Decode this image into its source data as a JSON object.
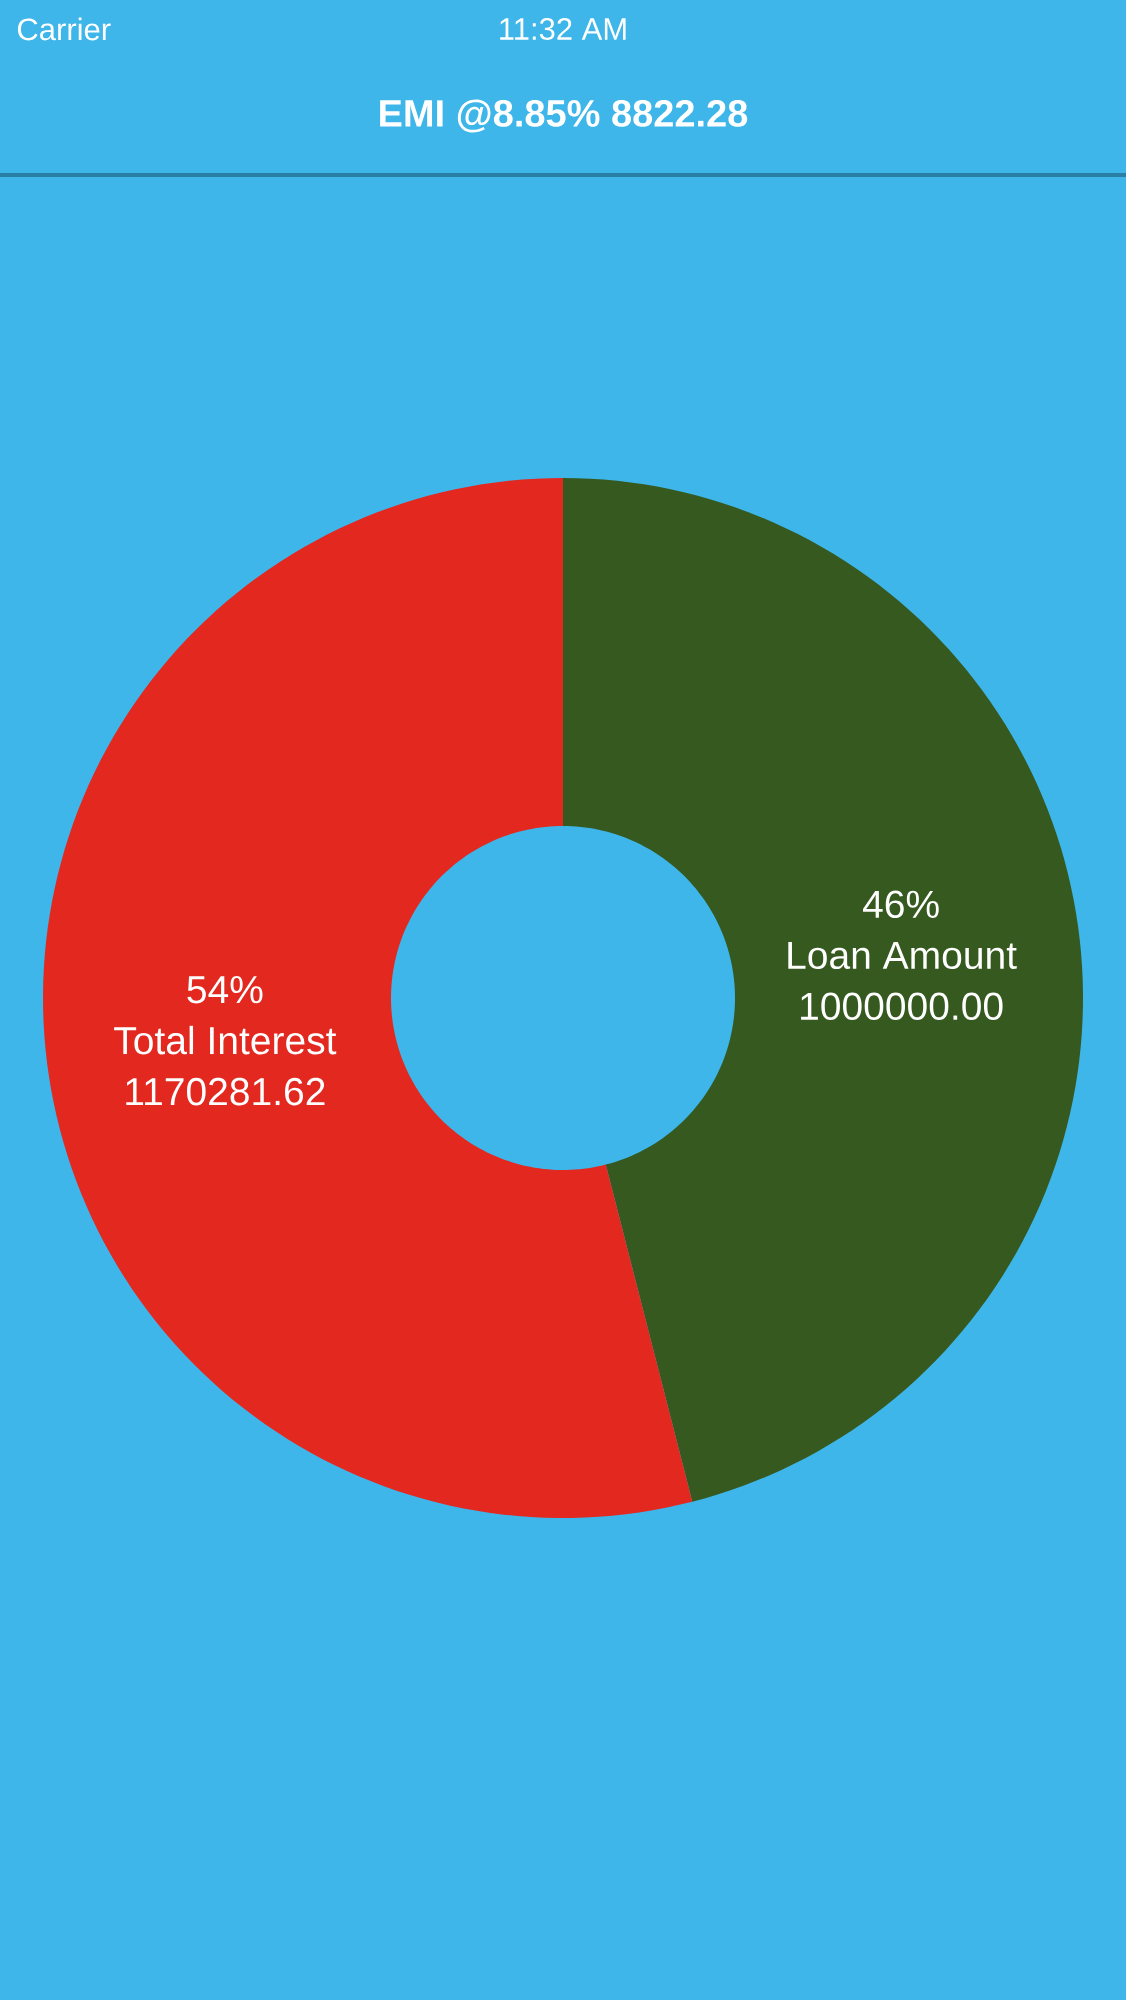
{
  "chart_data": {
    "type": "donut",
    "title": "EMI @8.85% 8822.28",
    "categories": [
      "Loan Amount",
      "Total Interest"
    ],
    "values": [
      46,
      54
    ],
    "colors": [
      "#35591f",
      "#e32820"
    ],
    "value_labels": [
      "46%",
      "54%"
    ],
    "annotations": [
      "Carrier",
      "11:32 AM",
      {
        "text": "1000000.00",
        "x": "Loan Amount"
      },
      {
        "text": "1170281.62",
        "x": "Total Interest"
      }
    ]
  }
}
